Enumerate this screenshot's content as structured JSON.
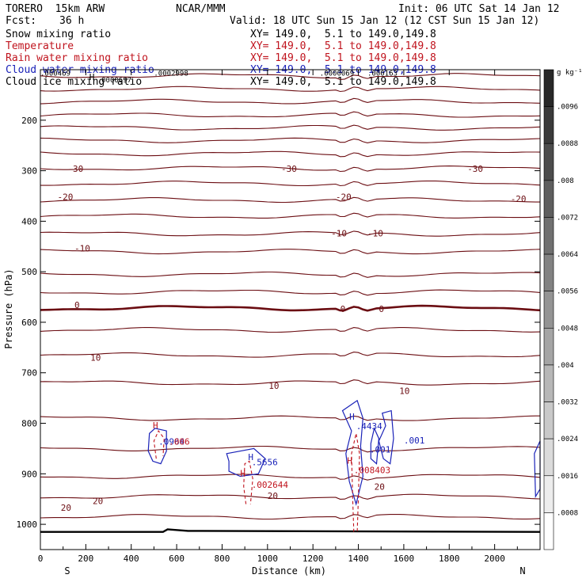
{
  "header": {
    "model": "TORERO  15km ARW",
    "center": "NCAR/MMM",
    "init": "Init: 06 UTC Sat 14 Jan 12",
    "fcst_label": "Fcst:",
    "fcst_value": "36 h",
    "valid": "Valid: 18 UTC Sun 15 Jan 12 (12 CST Sun 15 Jan 12)"
  },
  "fields": [
    {
      "name": "Snow mixing ratio",
      "xy": "XY= 149.0,  5.1 to 149.0,149.8",
      "color": "#000000"
    },
    {
      "name": "Temperature",
      "xy": "XY= 149.0,  5.1 to 149.0,149.8",
      "color": "#c0141e"
    },
    {
      "name": "Rain water mixing ratio",
      "xy": "XY= 149.0,  5.1 to 149.0,149.8",
      "color": "#c0141e"
    },
    {
      "name": "Cloud water mixing ratio",
      "xy": "XY= 149.0,  5.1 to 149.0,149.8",
      "color": "#1a22b8"
    },
    {
      "name": "Cloud ice mixing ratio",
      "xy": "XY= 149.0,  5.1 to 149.0,149.8",
      "color": "#000000"
    }
  ],
  "chart_data": {
    "type": "contour",
    "xlabel": "Distance (km)",
    "ylabel": "Pressure (hPa)",
    "xlim": [
      0,
      2200
    ],
    "ylim": [
      1050,
      100
    ],
    "x_ticks": [
      0,
      200,
      400,
      600,
      800,
      1000,
      1200,
      1400,
      1600,
      1800,
      2000
    ],
    "y_ticks": [
      200,
      300,
      400,
      500,
      600,
      700,
      800,
      900,
      1000
    ],
    "x_end_labels": {
      "left": "S",
      "right": "N"
    },
    "colorbar": {
      "unit": "g kg⁻¹",
      "labels": [
        ".0096",
        ".0088",
        ".008",
        ".0072",
        ".0064",
        ".0056",
        ".0048",
        ".004",
        ".0032",
        ".0024",
        ".0016",
        ".0008"
      ],
      "levels_top_to_bottom": 13
    },
    "temperature_contours": [
      {
        "p": 112,
        "label": ""
      },
      {
        "p": 138,
        "label": ""
      },
      {
        "p": 163,
        "label": ""
      },
      {
        "p": 190,
        "label": ""
      },
      {
        "p": 215,
        "label": ""
      },
      {
        "p": 240,
        "label": ""
      },
      {
        "p": 266,
        "label": ""
      },
      {
        "p": 295,
        "label": "-30"
      },
      {
        "p": 325,
        "label": ""
      },
      {
        "p": 358,
        "label": "-20"
      },
      {
        "p": 390,
        "label": ""
      },
      {
        "p": 425,
        "label": "-10"
      },
      {
        "p": 460,
        "label": ""
      },
      {
        "p": 505,
        "label": ""
      },
      {
        "p": 540,
        "label": ""
      },
      {
        "p": 572,
        "label": "0"
      },
      {
        "p": 615,
        "label": ""
      },
      {
        "p": 665,
        "label": "10"
      },
      {
        "p": 720,
        "label": ""
      },
      {
        "p": 790,
        "label": ""
      },
      {
        "p": 850,
        "label": ""
      },
      {
        "p": 905,
        "label": ""
      },
      {
        "p": 945,
        "label": "20"
      },
      {
        "p": 985,
        "label": ""
      }
    ],
    "contour_labels": [
      {
        "text": "-30",
        "x": 120,
        "p": 302
      },
      {
        "text": "-30",
        "x": 1060,
        "p": 302
      },
      {
        "text": "-30",
        "x": 1880,
        "p": 302
      },
      {
        "text": "-20",
        "x": 75,
        "p": 358
      },
      {
        "text": "-20",
        "x": 1300,
        "p": 358
      },
      {
        "text": "-20",
        "x": 2070,
        "p": 362
      },
      {
        "text": "-10",
        "x": 150,
        "p": 460
      },
      {
        "text": "-10",
        "x": 1280,
        "p": 430
      },
      {
        "text": "-10",
        "x": 1440,
        "p": 430
      },
      {
        "text": "0",
        "x": 150,
        "p": 572
      },
      {
        "text": "0",
        "x": 1320,
        "p": 580
      },
      {
        "text": "0",
        "x": 1490,
        "p": 580
      },
      {
        "text": "10",
        "x": 220,
        "p": 676
      },
      {
        "text": "10",
        "x": 1005,
        "p": 732
      },
      {
        "text": "10",
        "x": 1580,
        "p": 742
      },
      {
        "text": "20",
        "x": 1000,
        "p": 950
      },
      {
        "text": "20",
        "x": 1470,
        "p": 932
      },
      {
        "text": "20",
        "x": 230,
        "p": 960
      },
      {
        "text": "20",
        "x": 90,
        "p": 973
      }
    ],
    "cloud_water_values": [
      {
        "text": ".4434",
        "x": 1390,
        "p": 812
      },
      {
        "text": ".001",
        "x": 1600,
        "p": 840
      },
      {
        "text": ".001",
        "x": 1450,
        "p": 858
      },
      {
        "text": ".5656",
        "x": 930,
        "p": 883
      },
      {
        "text": ".0964",
        "x": 520,
        "p": 842
      }
    ],
    "rain_values": [
      {
        "text": ".006",
        "x": 565,
        "p": 842
      },
      {
        "text": ".002644",
        "x": 930,
        "p": 928
      },
      {
        "text": ".008403",
        "x": 1380,
        "p": 899
      }
    ],
    "extrema_labels": [
      {
        "text": "H",
        "x": 1360,
        "p": 793,
        "color": "#1a22b8"
      },
      {
        "text": "H",
        "x": 915,
        "p": 873,
        "color": "#1a22b8"
      },
      {
        "text": "H",
        "x": 880,
        "p": 905,
        "color": "#c0141e"
      },
      {
        "text": "H",
        "x": 1350,
        "p": 880,
        "color": "#c0141e"
      },
      {
        "text": "H",
        "x": 495,
        "p": 810,
        "color": "#c0141e"
      },
      {
        "text": "H",
        "x": 215,
        "p": 120,
        "color": "#000000"
      }
    ],
    "top_values": [
      {
        "text": ".000469",
        "x": 0,
        "p": 112
      },
      {
        "text": ".0002998",
        "x": 500,
        "p": 112
      },
      {
        "text": ".0000697",
        "x": 250,
        "p": 125
      },
      {
        "text": ".0000069",
        "x": 1230,
        "p": 112
      },
      {
        "text": ".000163",
        "x": 1440,
        "p": 112
      }
    ]
  }
}
